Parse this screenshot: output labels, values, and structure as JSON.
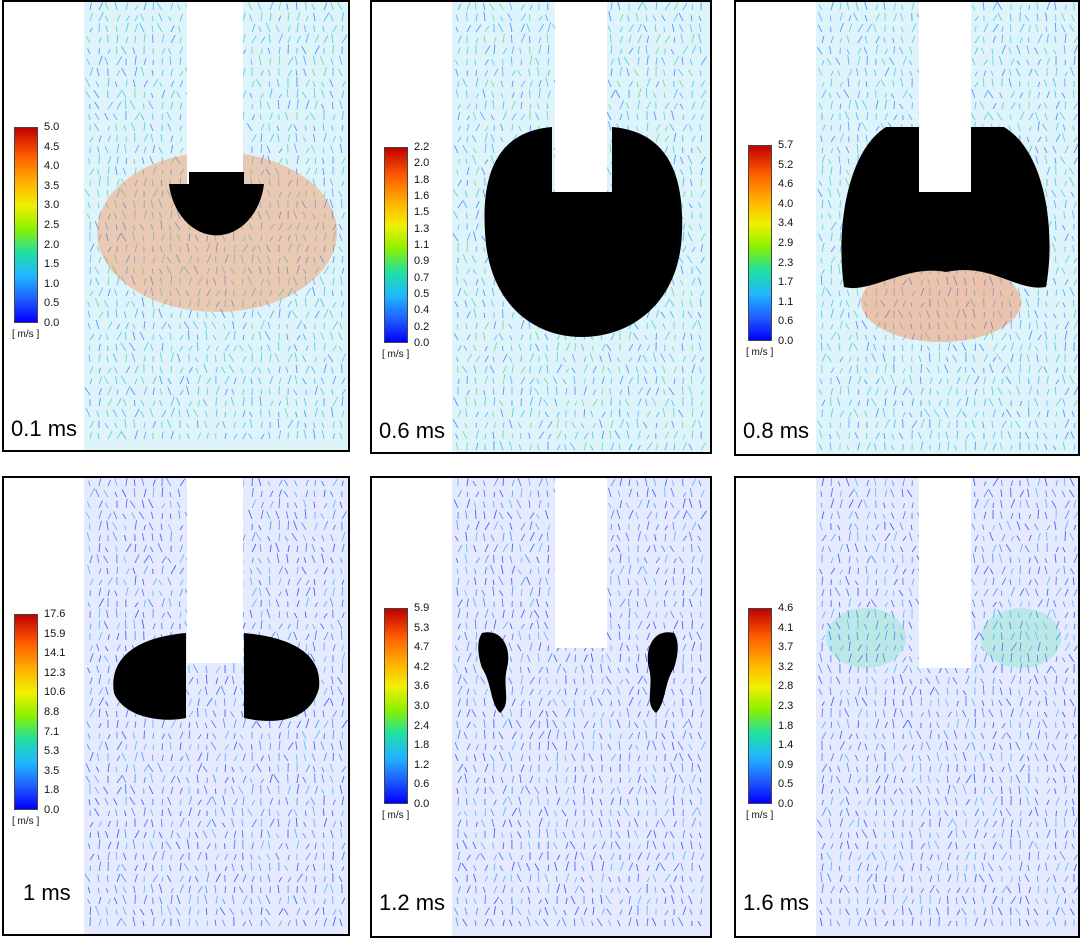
{
  "figure": {
    "unit_label": "[ m/s ]",
    "panels": [
      {
        "time_label": "0.1 ms",
        "scale_ticks": [
          "5.0",
          "4.5",
          "4.0",
          "3.5",
          "3.0",
          "2.5",
          "2.0",
          "1.5",
          "1.0",
          "0.5",
          "0.0"
        ]
      },
      {
        "time_label": "0.6 ms",
        "scale_ticks": [
          "2.2",
          "2.0",
          "1.8",
          "1.6",
          "1.5",
          "1.3",
          "1.1",
          "0.9",
          "0.7",
          "0.5",
          "0.4",
          "0.2",
          "0.0"
        ]
      },
      {
        "time_label": "0.8 ms",
        "scale_ticks": [
          "5.7",
          "5.2",
          "4.6",
          "4.0",
          "3.4",
          "2.9",
          "2.3",
          "1.7",
          "1.1",
          "0.6",
          "0.0"
        ]
      },
      {
        "time_label": "1 ms",
        "scale_ticks": [
          "17.6",
          "15.9",
          "14.1",
          "12.3",
          "10.6",
          "8.8",
          "7.1",
          "5.3",
          "3.5",
          "1.8",
          "0.0"
        ]
      },
      {
        "time_label": "1.2 ms",
        "scale_ticks": [
          "5.9",
          "5.3",
          "4.7",
          "4.2",
          "3.6",
          "3.0",
          "2.4",
          "1.8",
          "1.2",
          "0.6",
          "0.0"
        ]
      },
      {
        "time_label": "1.6 ms",
        "scale_ticks": [
          "4.6",
          "4.1",
          "3.7",
          "3.2",
          "2.8",
          "2.3",
          "1.8",
          "1.4",
          "0.9",
          "0.5",
          "0.0"
        ]
      }
    ]
  }
}
